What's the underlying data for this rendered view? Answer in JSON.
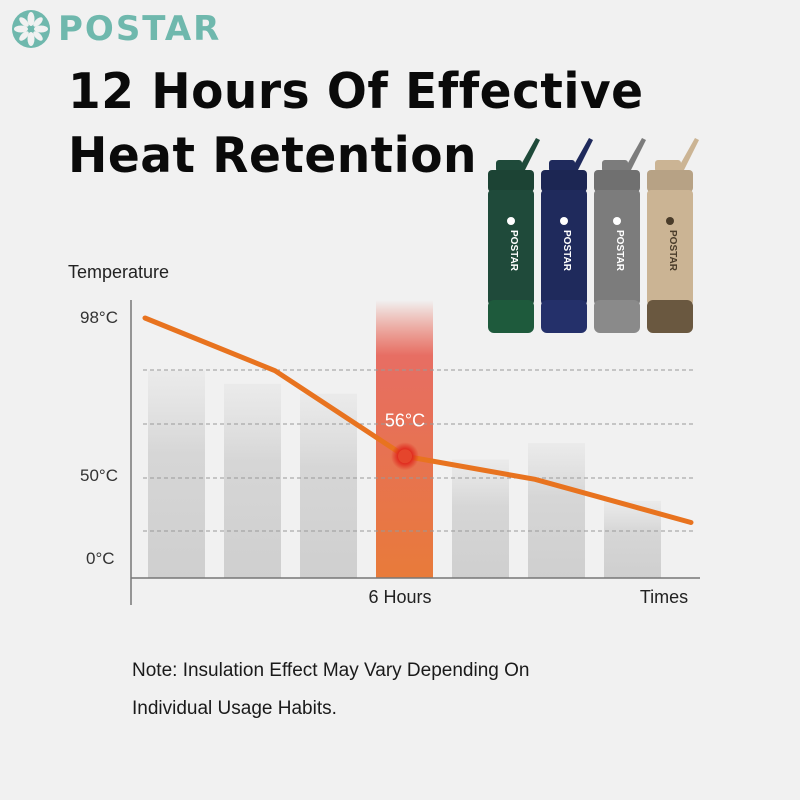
{
  "brand": {
    "logo_text": "POSTAR",
    "color": "#6fb8ad"
  },
  "headline": {
    "line1": "12 Hours Of Effective",
    "line2": "Heat Retention"
  },
  "products": [
    {
      "color": "#1f4a3a",
      "base": "#1e5a3c",
      "logo_text": "POSTAR"
    },
    {
      "color": "#1f2a5c",
      "base": "#24306a",
      "logo_text": "POSTAR"
    },
    {
      "color": "#7c7c7c",
      "base": "#8a8a8a",
      "logo_text": "POSTAR"
    },
    {
      "color": "#cbb494",
      "base": "#6a5840",
      "logo_text": "POSTAR"
    }
  ],
  "chart_data": {
    "type": "line",
    "title": "",
    "ylabel": "Temperature",
    "xlabel": "Times",
    "y_ticks": [
      "98°C",
      "50°C",
      "0°C"
    ],
    "x_ticks": [
      "6 Hours"
    ],
    "series": [
      {
        "name": "Temperature",
        "color": "#e8731f",
        "x": [
          0,
          3,
          6,
          9,
          12.6
        ],
        "y": [
          98,
          82,
          56,
          48,
          22
        ]
      }
    ],
    "highlight": {
      "x": 6,
      "y": 56,
      "label": "56°C",
      "color": "#e5452c"
    },
    "background_bars": [
      82,
      78,
      75,
      100,
      55,
      60,
      35
    ],
    "grid": "dashed-horizontal"
  },
  "note": {
    "line1": "Note: Insulation Effect May Vary Depending On",
    "line2": "Individual Usage Habits."
  }
}
